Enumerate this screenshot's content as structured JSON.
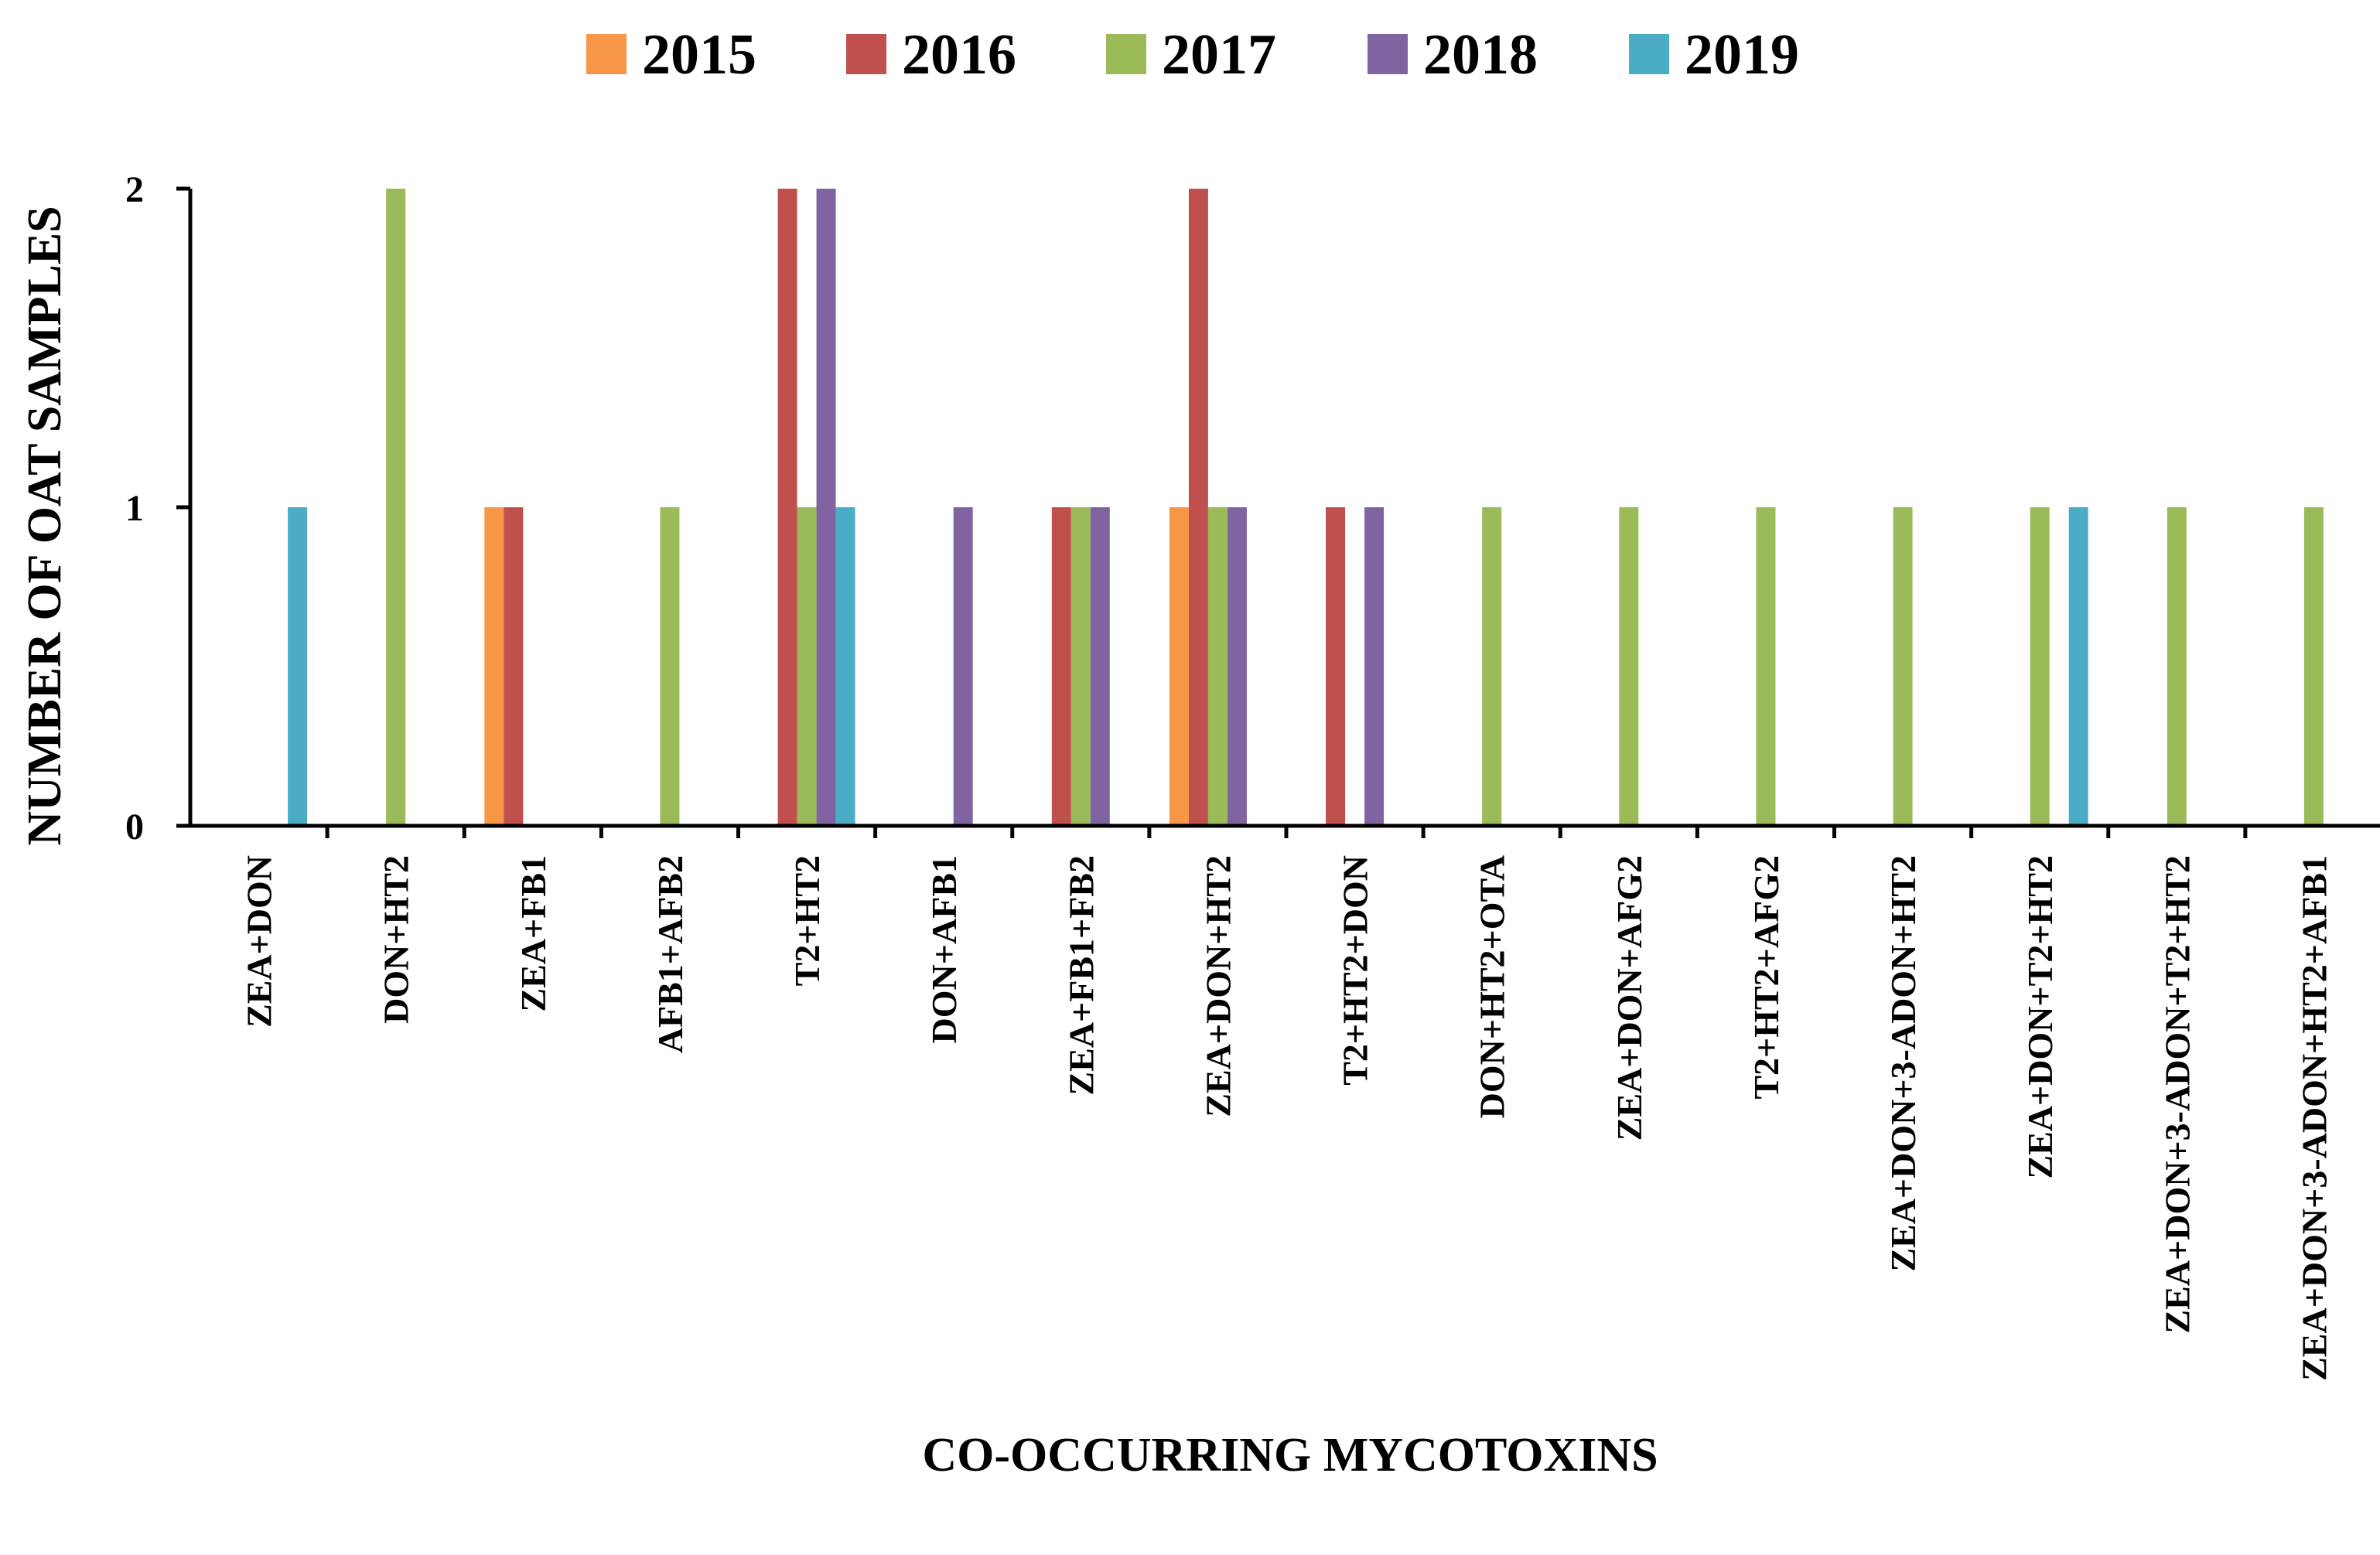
{
  "chart_data": {
    "type": "bar",
    "title": "",
    "xlabel": "CO-OCCURRING MYCOTOXINS",
    "ylabel": "NUMBER OF OAT SAMPLES",
    "ylim": [
      0,
      2
    ],
    "yticks": [
      "0",
      "1",
      "2"
    ],
    "legend_position": "top",
    "grid": false,
    "categories": [
      "ZEA+DON",
      "DON+HT2",
      "ZEA+FB1",
      "AFB1+AFB2",
      "T2+HT2",
      "DON+AFB1",
      "ZEA+FB1+FB2",
      "ZEA+DON+HT2",
      "T2+HT2+DON",
      "DON+HT2+OTA",
      "ZEA+DON+AFG2",
      "T2+HT2+AFG2",
      "ZEA+DON+3-ADON+HT2",
      "ZEA+DON+T2+HT2",
      "ZEA+DON+3-ADON+T2+HT2",
      "ZEA+DON+3-ADON+HT2+AFB1"
    ],
    "series": [
      {
        "name": "2015",
        "color": "#F79646",
        "values": [
          0,
          0,
          1,
          0,
          0,
          0,
          0,
          1,
          0,
          0,
          0,
          0,
          0,
          0,
          0,
          0
        ]
      },
      {
        "name": "2016",
        "color": "#C0504D",
        "values": [
          0,
          0,
          1,
          0,
          2,
          0,
          1,
          2,
          1,
          0,
          0,
          0,
          0,
          0,
          0,
          0
        ]
      },
      {
        "name": "2017",
        "color": "#9BBB59",
        "values": [
          0,
          2,
          0,
          1,
          1,
          0,
          1,
          1,
          0,
          1,
          1,
          1,
          1,
          1,
          1,
          1
        ]
      },
      {
        "name": "2018",
        "color": "#8064A2",
        "values": [
          0,
          0,
          0,
          0,
          2,
          1,
          1,
          1,
          1,
          0,
          0,
          0,
          0,
          0,
          0,
          0
        ]
      },
      {
        "name": "2019",
        "color": "#4BACC6",
        "values": [
          1,
          0,
          0,
          0,
          1,
          0,
          0,
          0,
          0,
          0,
          0,
          0,
          0,
          1,
          0,
          0
        ]
      }
    ]
  }
}
